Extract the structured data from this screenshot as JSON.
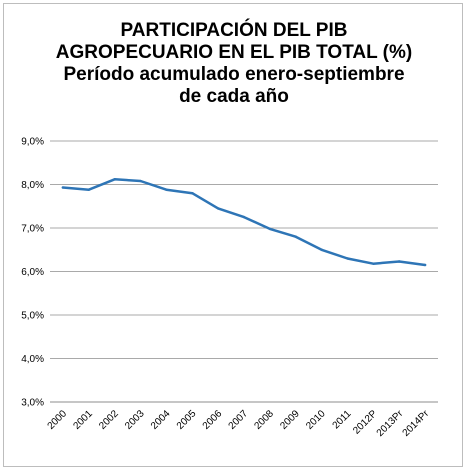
{
  "chart_data": {
    "type": "line",
    "title_lines": [
      "PARTICIPACIÓN DEL PIB",
      "AGROPECUARIO EN EL PIB TOTAL (%)",
      "Período acumulado enero-septiembre",
      "de cada año"
    ],
    "xlabel": "",
    "ylabel": "",
    "categories": [
      "2000",
      "2001",
      "2002",
      "2003",
      "2004",
      "2005",
      "2006",
      "2007",
      "2008",
      "2009",
      "2010",
      "2011",
      "2012P",
      "2013Pr",
      "2014Pr"
    ],
    "values": [
      7.93,
      7.88,
      8.12,
      8.08,
      7.88,
      7.8,
      7.45,
      7.25,
      6.98,
      6.8,
      6.5,
      6.3,
      6.18,
      6.23,
      6.15
    ],
    "ylim": [
      3.0,
      9.0
    ],
    "yticks": [
      {
        "value": 3.0,
        "label": "3,0%"
      },
      {
        "value": 4.0,
        "label": "4,0%"
      },
      {
        "value": 5.0,
        "label": "5,0%"
      },
      {
        "value": 6.0,
        "label": "6,0%"
      },
      {
        "value": 7.0,
        "label": "7,0%"
      },
      {
        "value": 8.0,
        "label": "8,0%"
      },
      {
        "value": 9.0,
        "label": "9,0%"
      }
    ],
    "grid": true,
    "legend": "none",
    "line_color": "#2e75b6"
  }
}
